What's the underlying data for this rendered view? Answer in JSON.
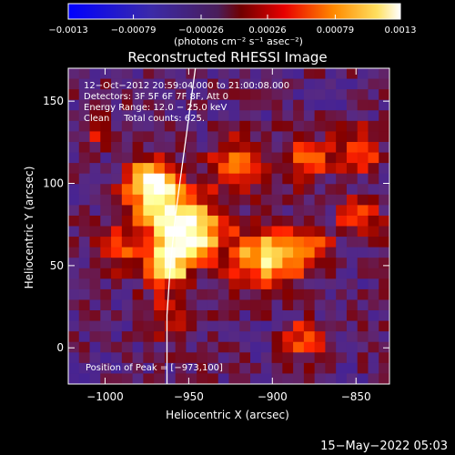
{
  "chart_data": {
    "type": "heatmap",
    "title": "Reconstructed RHESSI Image",
    "xlabel": "Heliocentric X (arcsec)",
    "ylabel": "Heliocentric Y (arcsec)",
    "xlim": [
      -1022,
      -830
    ],
    "ylim": [
      -22,
      170
    ],
    "x_ticks": [
      {
        "value": -1000,
        "label": "−1000"
      },
      {
        "value": -950,
        "label": "−950"
      },
      {
        "value": -900,
        "label": "−900"
      },
      {
        "value": -850,
        "label": "−850"
      }
    ],
    "y_ticks": [
      {
        "value": 0,
        "label": "0"
      },
      {
        "value": 50,
        "label": "50"
      },
      {
        "value": 100,
        "label": "100"
      },
      {
        "value": 150,
        "label": "150"
      }
    ],
    "colorbar": {
      "range": [
        -0.0013,
        0.0013
      ],
      "ticks": [
        {
          "value": -0.0013,
          "label": "−0.0013"
        },
        {
          "value": -0.00079,
          "label": "−0.00079"
        },
        {
          "value": -0.00026,
          "label": "−0.00026"
        },
        {
          "value": 0.00026,
          "label": "0.00026"
        },
        {
          "value": 0.00079,
          "label": "0.00079"
        },
        {
          "value": 0.0013,
          "label": "0.0013"
        }
      ],
      "unit_label": "(photons cm⁻² s⁻¹ asec⁻²)"
    },
    "annotations": [
      "12−Oct−2012 20:59:04.000 to 21:00:08.000",
      "Detectors: 3F 5F 6F 7F 8F, Att 0",
      "Energy Range: 12.0 − 25.0 keV",
      "Clean     Total counts: 625."
    ],
    "peak_label": "Position of Peak = [−973,100]",
    "peak": {
      "x": -973,
      "y": 100
    },
    "limb_curve": [
      {
        "x": -963,
        "y": -22
      },
      {
        "x": -963,
        "y": 20
      },
      {
        "x": -961,
        "y": 50
      },
      {
        "x": -958,
        "y": 80
      },
      {
        "x": -954,
        "y": 110
      },
      {
        "x": -950,
        "y": 140
      },
      {
        "x": -946,
        "y": 170
      }
    ],
    "colors": {
      "background": "#000000",
      "text": "#ffffff",
      "colormap": [
        "#0000ff",
        "#3a1fa0",
        "#5a2a80",
        "#800000",
        "#ff2000",
        "#ff9000",
        "#ffff80",
        "#ffffff"
      ]
    }
  },
  "footer": {
    "timestamp": "15−May−2022 05:03"
  }
}
